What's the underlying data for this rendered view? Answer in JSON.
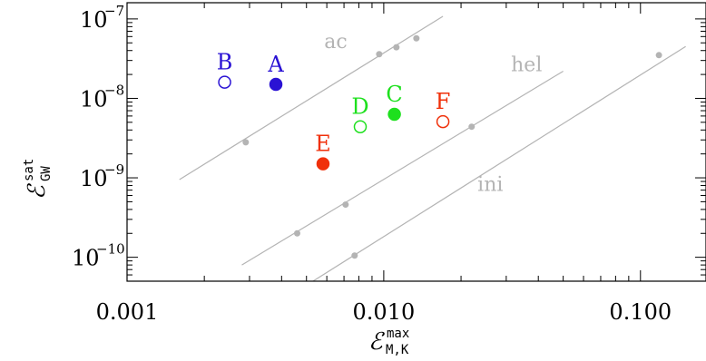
{
  "chart_data": {
    "type": "scatter",
    "title": "",
    "xscale": "log",
    "yscale": "log",
    "xlim": [
      0.001,
      0.18
    ],
    "ylim": [
      5e-11,
      1.6e-07
    ],
    "grid": false,
    "x_ticks": [
      {
        "value": 0.001,
        "label": "0.001"
      },
      {
        "value": 0.01,
        "label": "0.010"
      },
      {
        "value": 0.1,
        "label": "0.100"
      }
    ],
    "y_ticks": [
      {
        "value": 1e-07,
        "base": "10",
        "exp": "−7"
      },
      {
        "value": 1e-08,
        "base": "10",
        "exp": "−8"
      },
      {
        "value": 1e-09,
        "base": "10",
        "exp": "−9"
      },
      {
        "value": 1e-10,
        "base": "10",
        "exp": "−10"
      }
    ],
    "xlabel": {
      "main": "ℰ",
      "sup": "max",
      "sub": "M,K"
    },
    "ylabel": {
      "main": "ℰ",
      "sup": "sat",
      "sub": "GW"
    },
    "series": [
      {
        "name": "A",
        "color": "#2a12d4",
        "filled": true,
        "x": [
          0.0038
        ],
        "y": [
          1.5e-08
        ]
      },
      {
        "name": "B",
        "color": "#2a12d4",
        "filled": false,
        "x": [
          0.0024
        ],
        "y": [
          1.6e-08
        ]
      },
      {
        "name": "C",
        "color": "#1ee01e",
        "filled": true,
        "x": [
          0.011
        ],
        "y": [
          6.3e-09
        ]
      },
      {
        "name": "D",
        "color": "#1ee01e",
        "filled": false,
        "x": [
          0.0081
        ],
        "y": [
          4.4e-09
        ]
      },
      {
        "name": "E",
        "color": "#f0300a",
        "filled": true,
        "x": [
          0.0058
        ],
        "y": [
          1.5e-09
        ]
      },
      {
        "name": "F",
        "color": "#f0300a",
        "filled": false,
        "x": [
          0.017
        ],
        "y": [
          5.1e-09
        ]
      }
    ],
    "reference_lines": [
      {
        "name": "ac",
        "color": "#b4b4b4",
        "line": [
          [
            0.0016,
            9.5e-10
          ],
          [
            0.017,
            1.08e-07
          ]
        ],
        "points": {
          "x": [
            0.0029,
            0.0096,
            0.0112,
            0.0134
          ],
          "y": [
            2.8e-09,
            3.6e-08,
            4.4e-08,
            5.7e-08
          ]
        }
      },
      {
        "name": "hel",
        "color": "#b4b4b4",
        "line": [
          [
            0.0028,
            8e-11
          ],
          [
            0.05,
            2.2e-08
          ]
        ],
        "points": {
          "x": [
            0.0046,
            0.0071,
            0.022
          ],
          "y": [
            2e-10,
            4.6e-10,
            4.4e-09
          ]
        }
      },
      {
        "name": "ini",
        "color": "#b4b4b4",
        "line": [
          [
            0.0053,
            5e-11
          ],
          [
            0.15,
            4.5e-08
          ]
        ],
        "points": {
          "x": [
            0.0077,
            0.118
          ],
          "y": [
            1.05e-10,
            3.5e-08
          ]
        }
      }
    ]
  }
}
